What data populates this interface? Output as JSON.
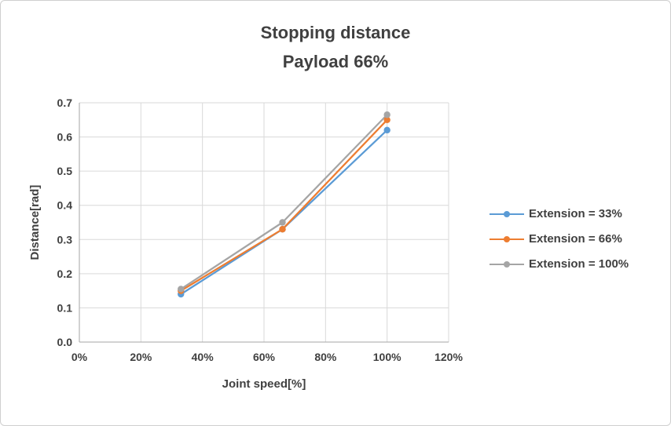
{
  "title_lines": [
    "Stopping distance",
    "Payload 66%"
  ],
  "colors": {
    "title_text": "#404040",
    "axis_text": "#404040",
    "gridline": "#d9d9d9",
    "axis_line": "#a6a6a6",
    "background": "#ffffff"
  },
  "chart_data": {
    "type": "line",
    "title": "Stopping distance Payload 66%",
    "xlabel": "Joint speed[%]",
    "ylabel": "Distance[rad]",
    "x": [
      33,
      66,
      100
    ],
    "series": [
      {
        "name": "Extension = 33%",
        "color": "#5B9BD5",
        "values": [
          0.14,
          0.33,
          0.62
        ]
      },
      {
        "name": "Extension = 66%",
        "color": "#ED7D31",
        "values": [
          0.15,
          0.33,
          0.65
        ]
      },
      {
        "name": "Extension = 100%",
        "color": "#A5A5A5",
        "values": [
          0.155,
          0.35,
          0.665
        ]
      }
    ],
    "xlim": [
      0,
      120
    ],
    "ylim": [
      0,
      0.7
    ],
    "x_ticks": [
      0,
      20,
      40,
      60,
      80,
      100,
      120
    ],
    "x_tick_labels": [
      "0%",
      "20%",
      "40%",
      "60%",
      "80%",
      "100%",
      "120%"
    ],
    "y_ticks": [
      0,
      0.1,
      0.2,
      0.3,
      0.4,
      0.5,
      0.6,
      0.7
    ],
    "y_tick_labels": [
      "0.0",
      "0.1",
      "0.2",
      "0.3",
      "0.4",
      "0.5",
      "0.6",
      "0.7"
    ],
    "grid": true,
    "legend_position": "right",
    "marker": "circle"
  }
}
